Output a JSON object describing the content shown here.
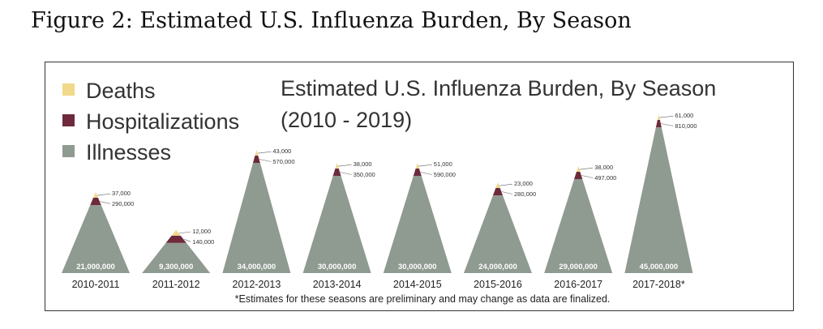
{
  "figure_title": "Figure 2: Estimated U.S. Influenza Burden, By Season",
  "colors": {
    "deaths": "#f0d98a",
    "hospitalizations": "#6e2a3c",
    "illnesses": "#8f9a91",
    "frame": "#333333"
  },
  "chart_data": {
    "type": "area",
    "title_line1": "Estimated U.S. Influenza Burden, By Season",
    "title_line2": "(2010 - 2019)",
    "legend": [
      "Deaths",
      "Hospitalizations",
      "Illnesses"
    ],
    "legend_position": "top-left",
    "footnote": "*Estimates for these seasons are preliminary and may change as data are finalized.",
    "categories": [
      "2010-2011",
      "2011-2012",
      "2012-2013",
      "2013-2014",
      "2014-2015",
      "2015-2016",
      "2016-2017",
      "2017-2018*"
    ],
    "series": [
      {
        "name": "Illnesses",
        "values": [
          21000000,
          9300000,
          34000000,
          30000000,
          30000000,
          24000000,
          29000000,
          45000000
        ],
        "labels": [
          "21,000,000",
          "9,300,000",
          "34,000,000",
          "30,000,000",
          "30,000,000",
          "24,000,000",
          "29,000,000",
          "45,000,000"
        ]
      },
      {
        "name": "Hospitalizations",
        "values": [
          290000,
          140000,
          570000,
          350000,
          590000,
          280000,
          497000,
          810000
        ],
        "labels": [
          "290,000",
          "140,000",
          "570,000",
          "350,000",
          "590,000",
          "280,000",
          "497,000",
          "810,000"
        ]
      },
      {
        "name": "Deaths",
        "values": [
          37000,
          12000,
          43000,
          38000,
          51000,
          23000,
          38000,
          61000
        ],
        "labels": [
          "37,000",
          "12,000",
          "43,000",
          "38,000",
          "51,000",
          "23,000",
          "38,000",
          "61,000"
        ]
      }
    ]
  }
}
